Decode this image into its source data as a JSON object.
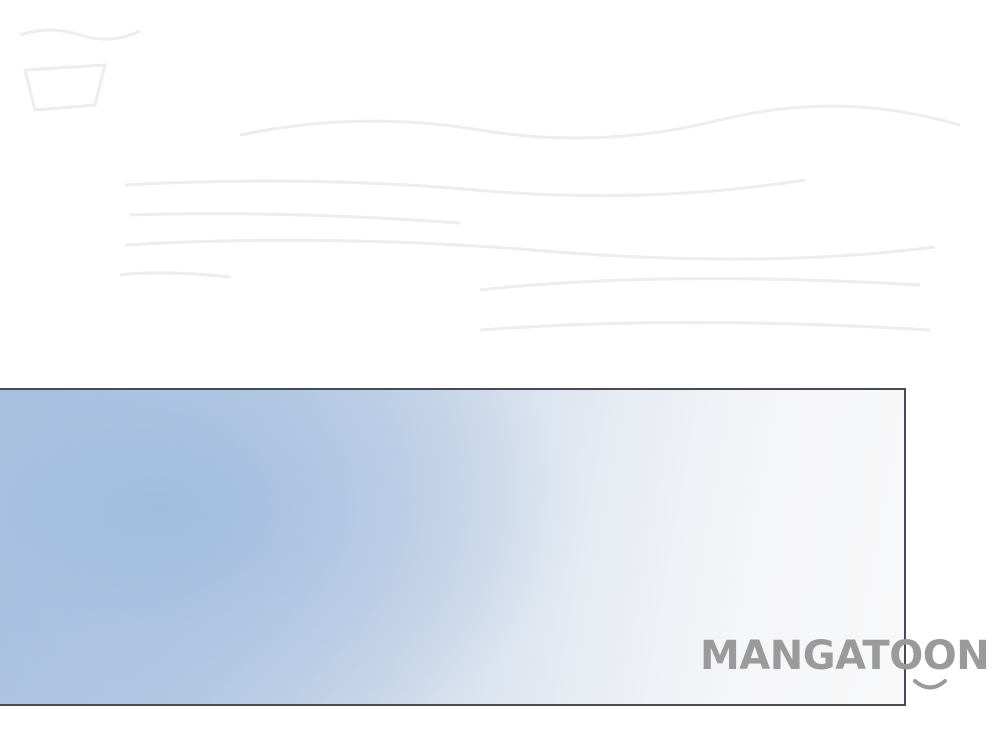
{
  "watermark": {
    "text": "MANGATOON",
    "color": "#9a9a9a",
    "icon": "smile-icon"
  },
  "panel": {
    "border_color": "#4a4a55",
    "gradient_start": "#a9c2e0",
    "gradient_end": "#f8f8f9"
  }
}
